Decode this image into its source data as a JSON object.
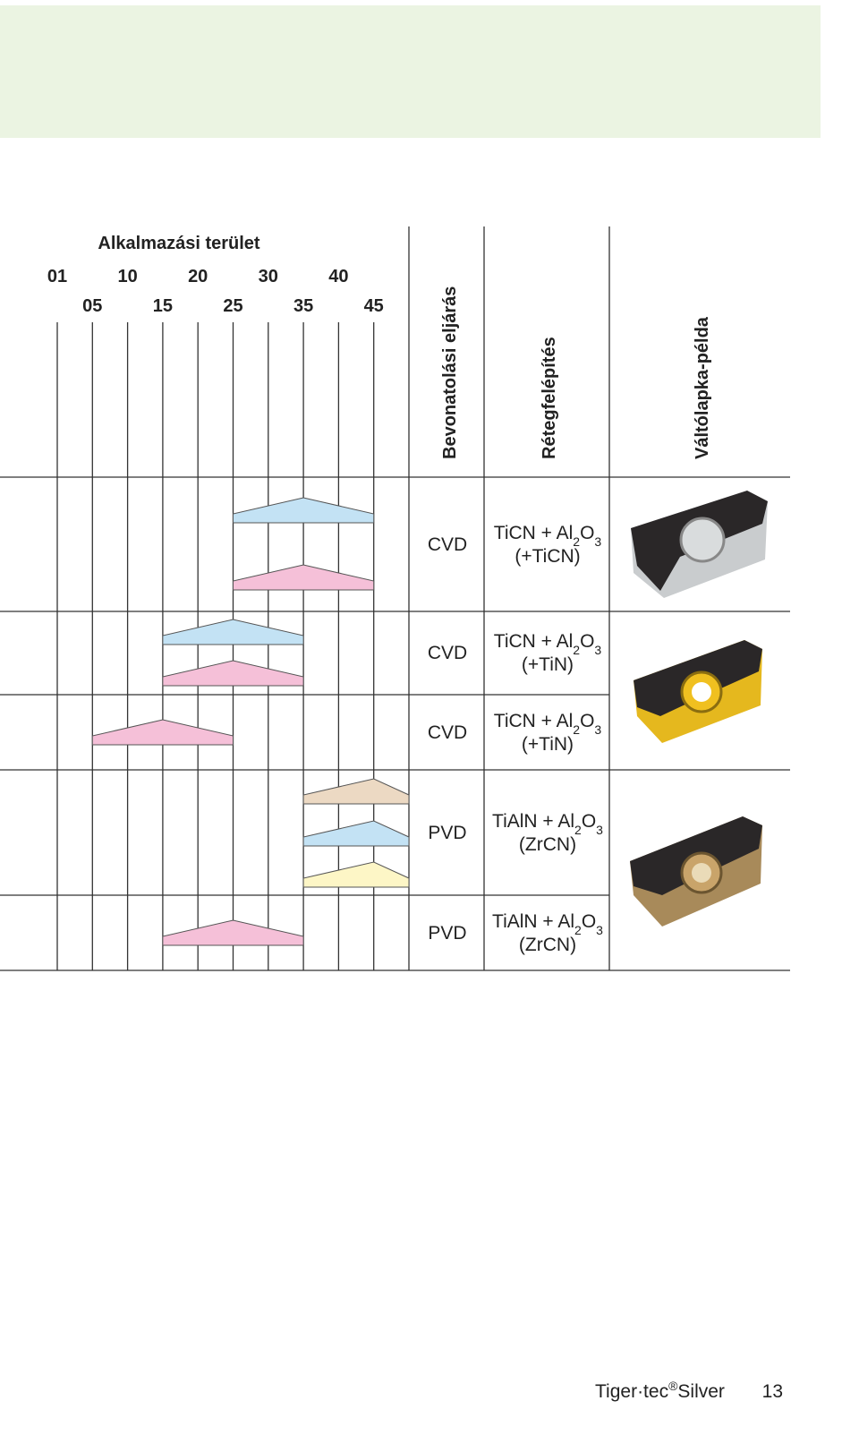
{
  "header": {
    "scale_title": "Alkalmazási terület",
    "columns": [
      "Bevonatolási eljárás",
      "Rétegfelépítés",
      "Váltólapka-példa"
    ]
  },
  "scale": {
    "xlim": [
      0,
      50
    ],
    "ticks": [
      {
        "value": 1,
        "label": "01"
      },
      {
        "value": 5,
        "label": "05"
      },
      10,
      15,
      20,
      25,
      30,
      35,
      40,
      45
    ]
  },
  "groups": [
    {
      "rows": [
        {
          "coating": "CVD",
          "layer": [
            {
              "text": "TiCN + Al"
            },
            {
              "text": "2",
              "sub": true
            },
            {
              "text": "O"
            },
            {
              "text": "3",
              "sub": true
            }
          ],
          "layer_extra": "(+TiCN)",
          "ranges": [
            {
              "color": "#c3e2f4",
              "from": 25,
              "peak": 35,
              "to": 45
            },
            {
              "color": "#f5c0d8",
              "from": 25,
              "peak": 35,
              "to": 45
            }
          ]
        }
      ]
    },
    {
      "rows": [
        {
          "coating": "CVD",
          "layer": [
            {
              "text": "TiCN + Al"
            },
            {
              "text": "2",
              "sub": true
            },
            {
              "text": "O"
            },
            {
              "text": "3",
              "sub": true
            }
          ],
          "layer_extra": "(+TiN)",
          "ranges": [
            {
              "color": "#c3e2f4",
              "from": 15,
              "peak": 25,
              "to": 35
            },
            {
              "color": "#f5c0d8",
              "from": 15,
              "peak": 25,
              "to": 35
            }
          ]
        },
        {
          "coating": "CVD",
          "layer": [
            {
              "text": "TiCN + Al"
            },
            {
              "text": "2",
              "sub": true
            },
            {
              "text": "O"
            },
            {
              "text": "3",
              "sub": true
            }
          ],
          "layer_extra": "(+TiN)",
          "ranges": [
            {
              "color": "#f5c0d8",
              "from": 5,
              "peak": 15,
              "to": 25
            }
          ]
        }
      ]
    },
    {
      "rows": [
        {
          "coating": "PVD",
          "layer": [
            {
              "text": "TiAlN + Al"
            },
            {
              "text": "2",
              "sub": true
            },
            {
              "text": "O"
            },
            {
              "text": "3",
              "sub": true
            }
          ],
          "layer_extra": "(ZrCN)",
          "ranges": [
            {
              "color": "#ecd9c3",
              "from": 35,
              "peak": 45,
              "to": 50
            },
            {
              "color": "#c3e2f4",
              "from": 35,
              "peak": 45,
              "to": 50
            },
            {
              "color": "#fdf6c6",
              "from": 35,
              "peak": 45,
              "to": 50
            }
          ]
        },
        {
          "coating": "PVD",
          "layer": [
            {
              "text": "TiAlN + Al"
            },
            {
              "text": "2",
              "sub": true
            },
            {
              "text": "O"
            },
            {
              "text": "3",
              "sub": true
            }
          ],
          "layer_extra": "(ZrCN)",
          "ranges": [
            {
              "color": "#f5c0d8",
              "from": 15,
              "peak": 25,
              "to": 35
            }
          ]
        }
      ]
    }
  ],
  "footer": {
    "brand": [
      {
        "text": "Tiger·tec"
      },
      {
        "text": "®",
        "sup": true
      },
      {
        "text": "Silver"
      }
    ],
    "page": "13"
  }
}
